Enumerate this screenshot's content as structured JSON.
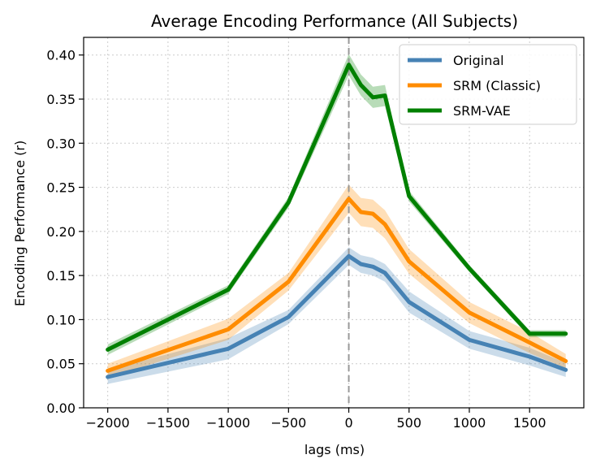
{
  "chart_data": {
    "type": "line",
    "title": "Average Encoding Performance (All Subjects)",
    "xlabel": "lags (ms)",
    "ylabel": "Encoding Performance (r)",
    "xlim": [
      -2200,
      1950
    ],
    "ylim": [
      0,
      0.42
    ],
    "xticks": [
      -2000,
      -1500,
      -1000,
      -500,
      0,
      500,
      1000,
      1500
    ],
    "xtick_labels": [
      "−2000",
      "−1500",
      "−1000",
      "−500",
      "0",
      "500",
      "1000",
      "1500"
    ],
    "yticks": [
      0.0,
      0.05,
      0.1,
      0.15,
      0.2,
      0.25,
      0.3,
      0.35,
      0.4
    ],
    "ytick_labels": [
      "0.00",
      "0.05",
      "0.10",
      "0.15",
      "0.20",
      "0.25",
      "0.30",
      "0.35",
      "0.40"
    ],
    "grid": true,
    "legend_position": "top-right",
    "vline_x": 0,
    "x": [
      -2000,
      -1000,
      -500,
      0,
      100,
      200,
      300,
      500,
      1000,
      1500,
      1800
    ],
    "series": [
      {
        "name": "Original",
        "color": "#4682b4",
        "values": [
          0.035,
          0.067,
          0.103,
          0.172,
          0.163,
          0.16,
          0.153,
          0.12,
          0.077,
          0.058,
          0.043
        ],
        "band": [
          0.008,
          0.012,
          0.008,
          0.01,
          0.01,
          0.01,
          0.01,
          0.012,
          0.01,
          0.01,
          0.008
        ]
      },
      {
        "name": "SRM (Classic)",
        "color": "#ff8c00",
        "values": [
          0.042,
          0.089,
          0.143,
          0.237,
          0.222,
          0.22,
          0.208,
          0.166,
          0.108,
          0.074,
          0.053
        ],
        "band": [
          0.008,
          0.012,
          0.01,
          0.016,
          0.016,
          0.016,
          0.016,
          0.014,
          0.012,
          0.012,
          0.008
        ]
      },
      {
        "name": "SRM-VAE",
        "color": "#008000",
        "values": [
          0.066,
          0.134,
          0.233,
          0.389,
          0.366,
          0.352,
          0.354,
          0.24,
          0.158,
          0.084,
          0.084
        ],
        "band": [
          0.006,
          0.005,
          0.006,
          0.012,
          0.012,
          0.012,
          0.012,
          0.006,
          0.004,
          0.004,
          0.004
        ]
      }
    ]
  }
}
